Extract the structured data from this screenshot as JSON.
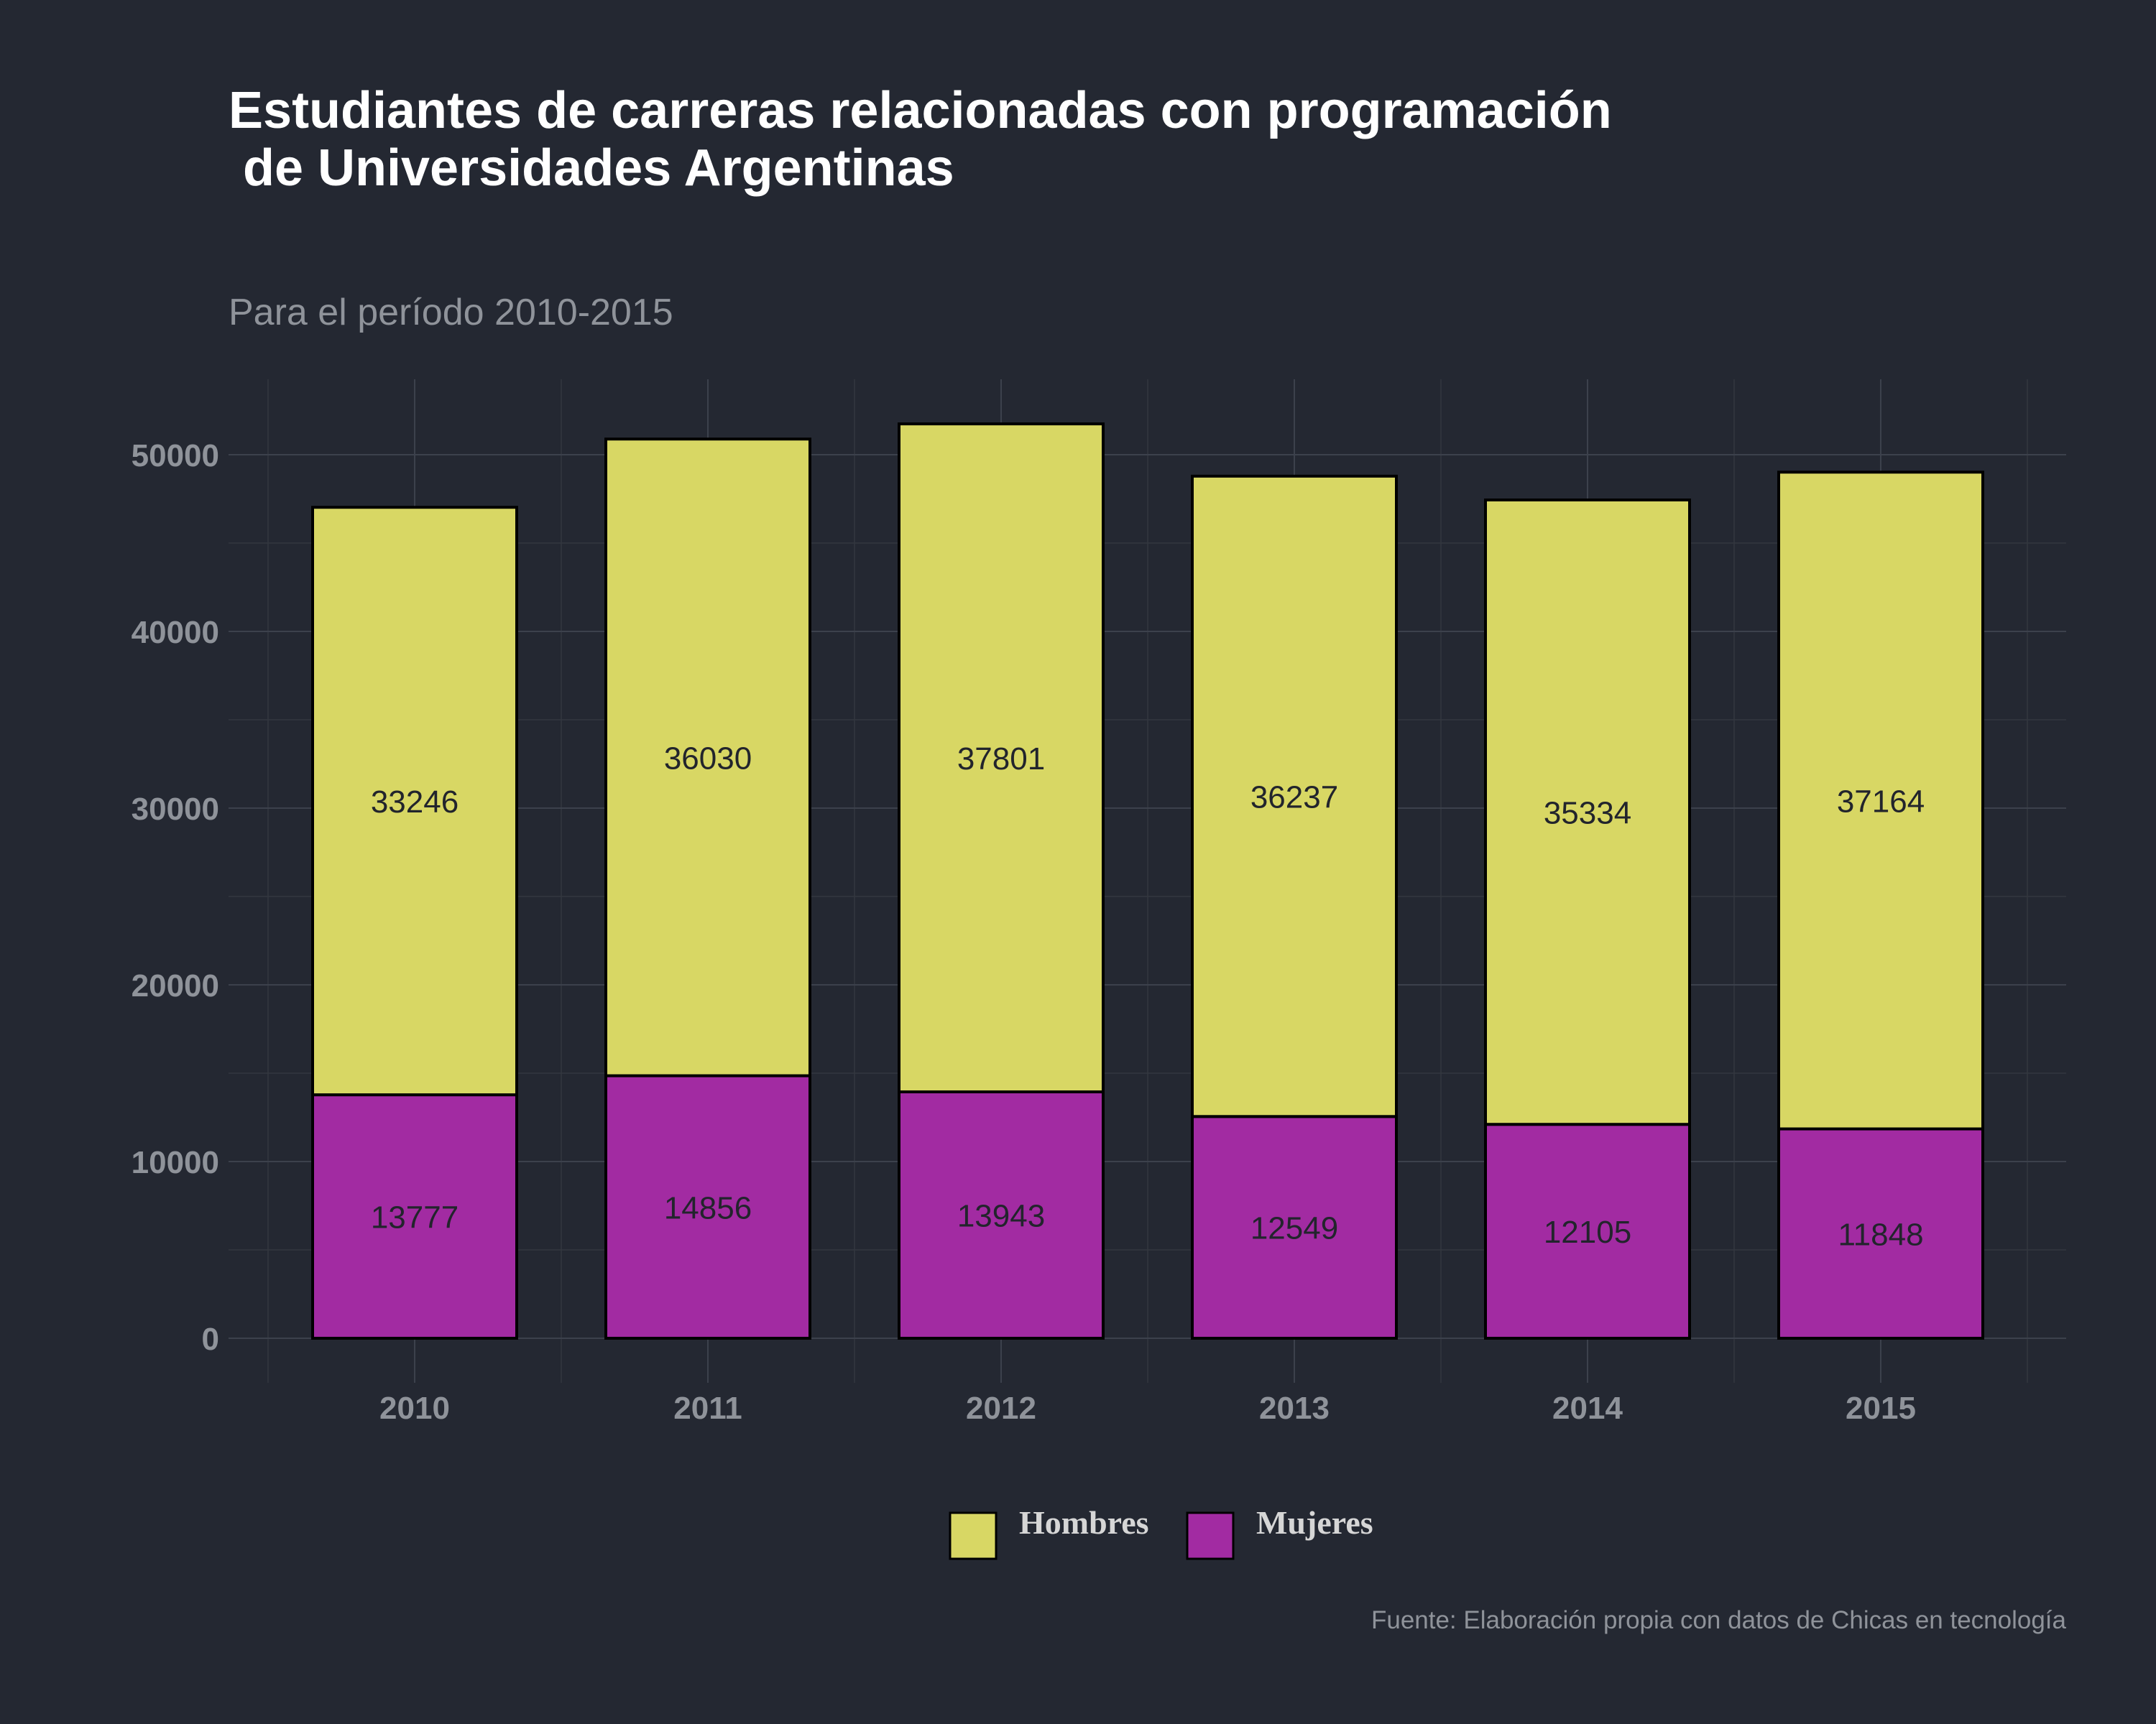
{
  "chart_data": {
    "type": "bar",
    "stacked": true,
    "title_line1": "Estudiantes de carreras relacionadas con programación",
    "title_line2": " de Universidades Argentinas",
    "subtitle": "Para el período 2010-2015",
    "caption": "Fuente: Elaboración propia con datos de Chicas en tecnología",
    "categories": [
      "2010",
      "2011",
      "2012",
      "2013",
      "2014",
      "2015"
    ],
    "series": [
      {
        "name": "Mujeres",
        "color": "#a22ba2",
        "values": [
          13777,
          14856,
          13943,
          12549,
          12105,
          11848
        ]
      },
      {
        "name": "Hombres",
        "color": "#d8d764",
        "values": [
          33246,
          36030,
          37801,
          36237,
          35334,
          37164
        ]
      }
    ],
    "legend": {
      "position": "bottom",
      "items": [
        {
          "label": "Hombres",
          "color": "#d8d764"
        },
        {
          "label": "Mujeres",
          "color": "#a22ba2"
        }
      ]
    },
    "y_ticks": [
      0,
      10000,
      20000,
      30000,
      40000,
      50000
    ],
    "ylim": [
      0,
      54000
    ],
    "grid": true,
    "xlabel": "",
    "ylabel": ""
  }
}
